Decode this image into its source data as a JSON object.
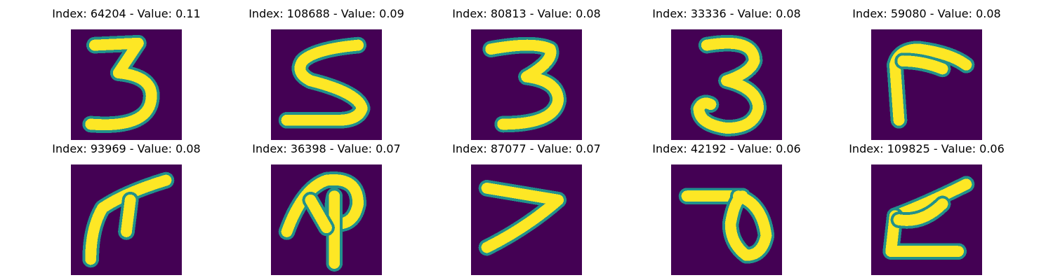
{
  "colors": {
    "background": "#440154",
    "edge": "#21918c",
    "stroke": "#fde725"
  },
  "panels": [
    {
      "title": "Index: 64204 - Value: 0.11",
      "glyph": "digit-3"
    },
    {
      "title": "Index: 108688 - Value: 0.09",
      "glyph": "digit-5"
    },
    {
      "title": "Index: 80813 - Value: 0.08",
      "glyph": "digit-3"
    },
    {
      "title": "Index: 33336 - Value: 0.08",
      "glyph": "digit-3"
    },
    {
      "title": "Index: 59080 - Value: 0.08",
      "glyph": "angle-stroke"
    },
    {
      "title": "Index: 93969 - Value: 0.08",
      "glyph": "arrow-stroke"
    },
    {
      "title": "Index: 36398 - Value: 0.07",
      "glyph": "loop-stroke"
    },
    {
      "title": "Index: 87077 - Value: 0.07",
      "glyph": "digit-7-like"
    },
    {
      "title": "Index: 42192 - Value: 0.06",
      "glyph": "loop-down-stroke"
    },
    {
      "title": "Index: 109825 - Value: 0.06",
      "glyph": "z-like"
    }
  ]
}
